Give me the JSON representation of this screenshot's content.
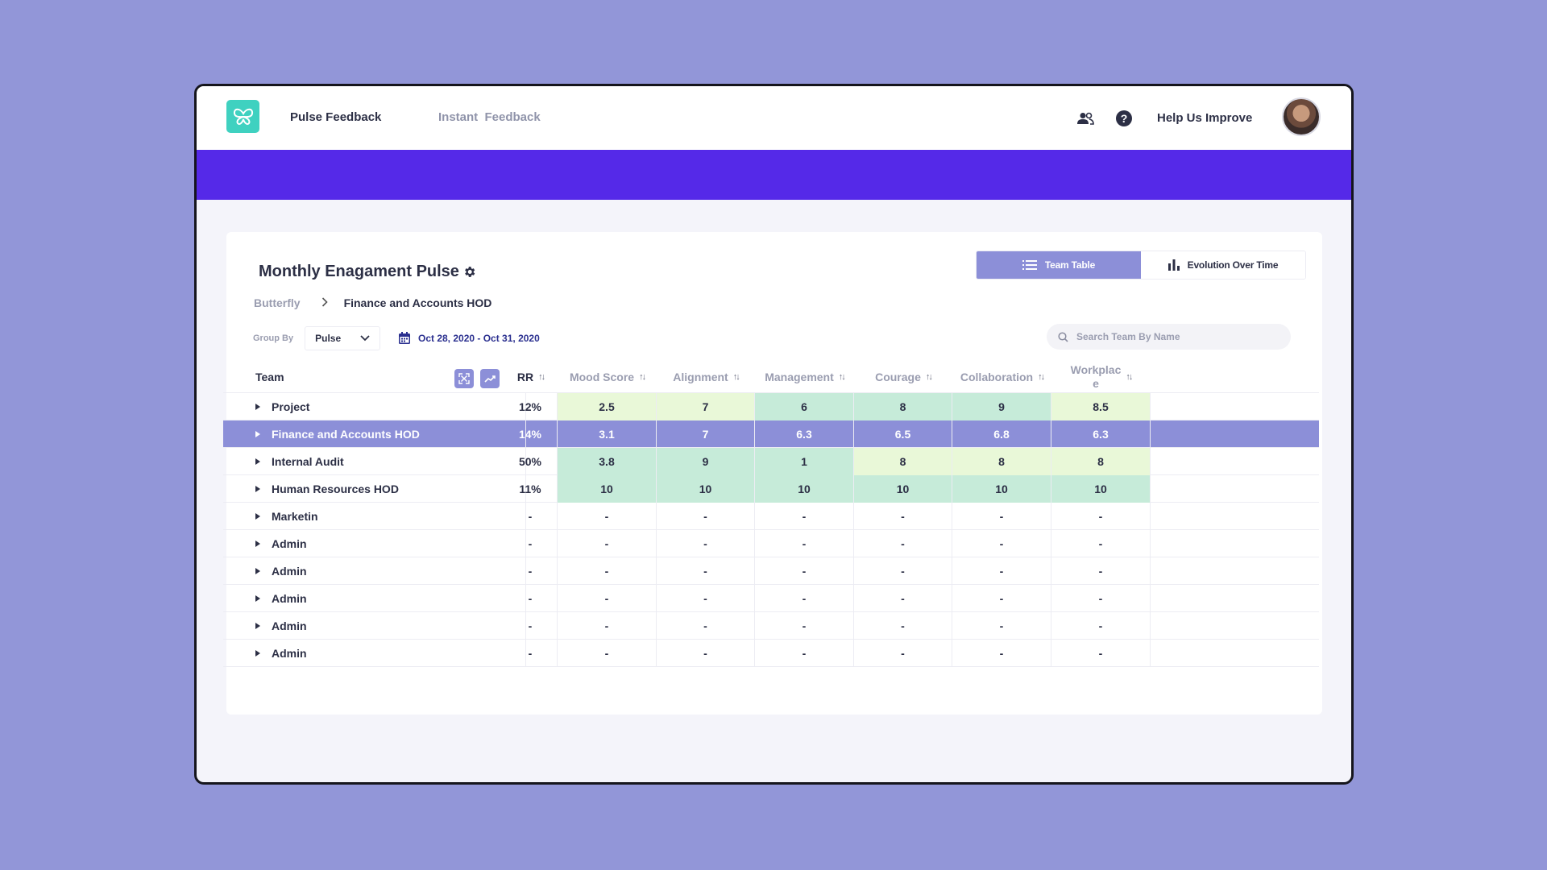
{
  "topbar": {
    "nav": [
      {
        "label": "Pulse Feedback",
        "active": true
      },
      {
        "label": "Instant  Feedback",
        "active": false
      }
    ],
    "help_label": "Help Us Improve",
    "icons": [
      "team-icon",
      "help-icon"
    ]
  },
  "card": {
    "title": "Monthly Enagament Pulse",
    "views": [
      {
        "label": "Team Table",
        "selected": true,
        "icon": "list-icon"
      },
      {
        "label": "Evolution Over Time",
        "selected": false,
        "icon": "bar-chart-icon"
      }
    ],
    "breadcrumb": {
      "root": "Butterfly",
      "current": "Finance and Accounts HOD"
    },
    "group_by": {
      "label": "Group By",
      "value": "Pulse"
    },
    "date_range": "Oct 28, 2020 - Oct 31, 2020",
    "search_placeholder": "Search Team By Name"
  },
  "table": {
    "team_header": "Team",
    "columns": [
      "RR",
      "Mood Score",
      "Alignment",
      "Management",
      "Courage",
      "Collaboration",
      "Workplac\ne"
    ],
    "rows": [
      {
        "team": "Project",
        "rr": "12%",
        "values": [
          "2.5",
          "7",
          "6",
          "8",
          "9",
          "8.5"
        ],
        "bg": [
          "light",
          "light",
          "mint",
          "mint",
          "mint",
          "light"
        ],
        "highlight": false
      },
      {
        "team": "Finance and Accounts HOD",
        "rr": "14%",
        "values": [
          "3.1",
          "7",
          "6.3",
          "6.5",
          "6.8",
          "6.3"
        ],
        "bg": [
          "",
          "",
          "",
          "",
          "",
          ""
        ],
        "highlight": true
      },
      {
        "team": "Internal Audit",
        "rr": "50%",
        "values": [
          "3.8",
          "9",
          "1",
          "8",
          "8",
          "8"
        ],
        "bg": [
          "mint",
          "mint",
          "mint",
          "light",
          "light",
          "light"
        ],
        "highlight": false
      },
      {
        "team": "Human Resources HOD",
        "rr": "11%",
        "values": [
          "10",
          "10",
          "10",
          "10",
          "10",
          "10"
        ],
        "bg": [
          "mint",
          "mint",
          "mint",
          "mint",
          "mint",
          "mint"
        ],
        "highlight": false
      },
      {
        "team": "Marketin",
        "rr": "-",
        "values": [
          "-",
          "-",
          "-",
          "-",
          "-",
          "-"
        ],
        "bg": [
          "",
          "",
          "",
          "",
          "",
          ""
        ],
        "highlight": false
      },
      {
        "team": "Admin",
        "rr": "-",
        "values": [
          "-",
          "-",
          "-",
          "-",
          "-",
          "-"
        ],
        "bg": [
          "",
          "",
          "",
          "",
          "",
          ""
        ],
        "highlight": false
      },
      {
        "team": "Admin",
        "rr": "-",
        "values": [
          "-",
          "-",
          "-",
          "-",
          "-",
          "-"
        ],
        "bg": [
          "",
          "",
          "",
          "",
          "",
          ""
        ],
        "highlight": false
      },
      {
        "team": "Admin",
        "rr": "-",
        "values": [
          "-",
          "-",
          "-",
          "-",
          "-",
          "-"
        ],
        "bg": [
          "",
          "",
          "",
          "",
          "",
          ""
        ],
        "highlight": false
      },
      {
        "team": "Admin",
        "rr": "-",
        "values": [
          "-",
          "-",
          "-",
          "-",
          "-",
          "-"
        ],
        "bg": [
          "",
          "",
          "",
          "",
          "",
          ""
        ],
        "highlight": false
      },
      {
        "team": "Admin",
        "rr": "-",
        "values": [
          "-",
          "-",
          "-",
          "-",
          "-",
          "-"
        ],
        "bg": [
          "",
          "",
          "",
          "",
          "",
          ""
        ],
        "highlight": false
      }
    ]
  },
  "colors": {
    "accent": "#5529e8",
    "selected": "#8c8fd8",
    "logo": "#3fd1c0",
    "cell_light": "#e9f8d8",
    "cell_mint": "#c6ebd9"
  }
}
